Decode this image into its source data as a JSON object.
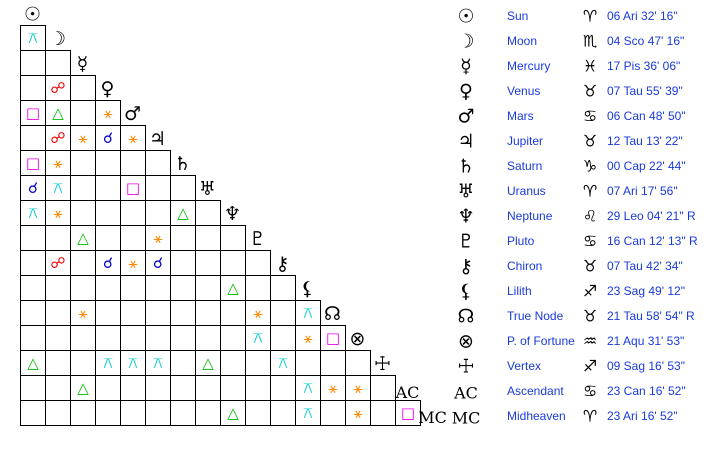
{
  "planets": [
    {
      "glyph": "☉",
      "name": "Sun",
      "sign": "♈",
      "position": "06 Ari 32' 16\""
    },
    {
      "glyph": "☽",
      "name": "Moon",
      "sign": "♏",
      "position": "04 Sco 47' 16\""
    },
    {
      "glyph": "☿",
      "name": "Mercury",
      "sign": "♓",
      "position": "17 Pis 36' 06\""
    },
    {
      "glyph": "♀",
      "name": "Venus",
      "sign": "♉",
      "position": "07 Tau 55' 39\""
    },
    {
      "glyph": "♂",
      "name": "Mars",
      "sign": "♋",
      "position": "06 Can 48' 50\""
    },
    {
      "glyph": "♃",
      "name": "Jupiter",
      "sign": "♉",
      "position": "12 Tau 13' 22\""
    },
    {
      "glyph": "♄",
      "name": "Saturn",
      "sign": "♑",
      "position": "00 Cap 22' 44\""
    },
    {
      "glyph": "♅",
      "name": "Uranus",
      "sign": "♈",
      "position": "07 Ari 17' 56\""
    },
    {
      "glyph": "♆",
      "name": "Neptune",
      "sign": "♌",
      "position": "29 Leo 04' 21\" R"
    },
    {
      "glyph": "♇",
      "name": "Pluto",
      "sign": "♋",
      "position": "16 Can 12' 13\" R"
    },
    {
      "glyph": "⚷",
      "name": "Chiron",
      "sign": "♉",
      "position": "07 Tau 42' 34\""
    },
    {
      "glyph": "⚸",
      "name": "Lilith",
      "sign": "♐",
      "position": "23 Sag 49' 12\""
    },
    {
      "glyph": "☊",
      "name": "True Node",
      "sign": "♉",
      "position": "21 Tau 58' 54\" R"
    },
    {
      "glyph": "⊗",
      "name": "P. of Fortune",
      "sign": "♒",
      "position": "21 Aqu 31' 53\""
    },
    {
      "glyph": "☩",
      "name": "Vertex",
      "sign": "♐",
      "position": "09 Sag 16' 53\""
    },
    {
      "glyph": "AC",
      "name": "Ascendant",
      "sign": "♋",
      "position": "23 Can 16' 52\""
    },
    {
      "glyph": "MC",
      "name": "Midheaven",
      "sign": "♈",
      "position": "23 Ari 16' 52\""
    }
  ],
  "aspect_colors": {
    "☌": "#0000cc",
    "☍": "#ee0000",
    "△": "#00bb00",
    "□": "#ee00ee",
    "⚹": "#ff8800",
    "⚻": "#00cccc"
  },
  "aspect_grid": [
    [
      "⚻"
    ],
    [
      null,
      null
    ],
    [
      null,
      "☍",
      null
    ],
    [
      "□",
      "△",
      null,
      "⚹"
    ],
    [
      null,
      "☍",
      "⚹",
      "☌",
      "⚹"
    ],
    [
      "□",
      "⚹",
      null,
      null,
      null,
      null
    ],
    [
      "☌",
      "⚻",
      null,
      null,
      "□",
      null,
      null
    ],
    [
      "⚻",
      "⚹",
      null,
      null,
      null,
      null,
      "△",
      null
    ],
    [
      null,
      null,
      "△",
      null,
      null,
      "⚹",
      null,
      null,
      null
    ],
    [
      null,
      "☍",
      null,
      "☌",
      "⚹",
      "☌",
      null,
      null,
      null,
      null
    ],
    [
      null,
      null,
      null,
      null,
      null,
      null,
      null,
      null,
      "△",
      null,
      null
    ],
    [
      null,
      null,
      "⚹",
      null,
      null,
      null,
      null,
      null,
      null,
      "⚹",
      null,
      "⚻"
    ],
    [
      null,
      null,
      null,
      null,
      null,
      null,
      null,
      null,
      null,
      "⚻",
      null,
      "⚹",
      "□"
    ],
    [
      "△",
      null,
      null,
      "⚻",
      "⚻",
      "⚻",
      null,
      "△",
      null,
      null,
      "⚻",
      null,
      null,
      null
    ],
    [
      null,
      null,
      "△",
      null,
      null,
      null,
      null,
      null,
      null,
      null,
      null,
      "⚻",
      "⚹",
      "⚹",
      null
    ],
    [
      null,
      null,
      null,
      null,
      null,
      null,
      null,
      null,
      "△",
      null,
      null,
      "⚻",
      null,
      "⚹",
      null,
      "□"
    ]
  ]
}
